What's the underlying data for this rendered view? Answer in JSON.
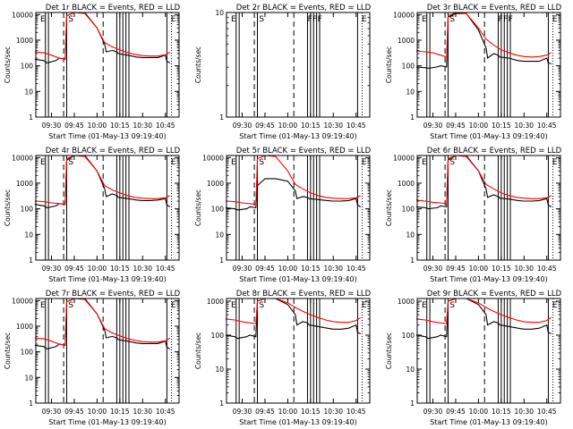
{
  "chart_data": [
    {
      "type": "line",
      "title": "Det 1r BLACK = Events, RED = LLD",
      "xlabel": "Start Time (01-May-13 09:19:40)",
      "ylabel": "Counts/sec",
      "y_scale": "log",
      "ylim": [
        1,
        12000
      ],
      "x_ticks": [
        "09:30",
        "09:45",
        "10:00",
        "10:15",
        "10:30",
        "10:45"
      ],
      "y_ticks": [
        "1",
        "10",
        "100",
        "1000",
        "10000"
      ],
      "flags": [
        "E",
        "S",
        "E"
      ],
      "series": [
        {
          "color": "#000000",
          "x": [
            "09:19",
            "09:25",
            "09:27",
            "09:33",
            "09:35",
            "09:39",
            "09:40",
            "09:45",
            "09:52",
            "10:00",
            "10:05",
            "10:06",
            "10:10",
            "10:13",
            "10:14",
            "10:20",
            "10:26",
            "10:30",
            "10:35",
            "10:40",
            "10:45",
            "10:46",
            "10:48"
          ],
          "values": [
            180,
            160,
            130,
            160,
            200,
            180,
            9000,
            12000,
            12000,
            3000,
            700,
            350,
            400,
            350,
            300,
            260,
            220,
            210,
            210,
            210,
            260,
            150,
            130
          ]
        },
        {
          "color": "#ff0000",
          "x": [
            "09:19",
            "09:25",
            "09:30",
            "09:35",
            "09:39",
            "09:40",
            "09:45",
            "09:52",
            "10:00",
            "10:05",
            "10:10",
            "10:15",
            "10:20",
            "10:25",
            "10:30",
            "10:35",
            "10:40",
            "10:45",
            "10:48"
          ],
          "values": [
            350,
            320,
            260,
            200,
            180,
            9000,
            12000,
            11000,
            3000,
            800,
            550,
            420,
            330,
            280,
            250,
            240,
            240,
            270,
            340
          ]
        }
      ]
    },
    {
      "type": "line",
      "title": "Det 2r BLACK = Events, RED = LLD",
      "xlabel": "Start Time (01-May-13 09:19:40)",
      "ylabel": "Counts/sec",
      "y_scale": "log",
      "ylim": [
        1,
        10
      ],
      "x_ticks": [
        "09:30",
        "09:45",
        "10:00",
        "10:15",
        "10:30",
        "10:45"
      ],
      "y_ticks": [
        "1",
        "10"
      ],
      "flags": [
        "E",
        "S",
        "F",
        "F",
        "F",
        "E"
      ],
      "series": []
    },
    {
      "type": "line",
      "title": "Det 3r BLACK = Events, RED = LLD",
      "xlabel": "Start Time (01-May-13 09:19:40)",
      "ylabel": "Counts/sec",
      "y_scale": "log",
      "ylim": [
        1,
        12000
      ],
      "x_ticks": [
        "09:30",
        "09:45",
        "10:00",
        "10:15",
        "10:30",
        "10:45"
      ],
      "y_ticks": [
        "1",
        "10",
        "100",
        "1000",
        "10000"
      ],
      "flags": [
        "E",
        "S",
        "F",
        "F",
        "F",
        "E"
      ],
      "series": [
        {
          "color": "#000000",
          "x": [
            "09:19",
            "09:25",
            "09:27",
            "09:33",
            "09:35",
            "09:39",
            "09:40",
            "09:45",
            "09:52",
            "10:00",
            "10:05",
            "10:06",
            "10:10",
            "10:13",
            "10:14",
            "10:20",
            "10:26",
            "10:30",
            "10:35",
            "10:40",
            "10:45",
            "10:46",
            "10:48"
          ],
          "values": [
            90,
            85,
            80,
            90,
            100,
            90,
            8000,
            11000,
            11000,
            2500,
            500,
            200,
            300,
            260,
            220,
            200,
            160,
            150,
            150,
            150,
            200,
            130,
            120
          ]
        },
        {
          "color": "#ff0000",
          "x": [
            "09:19",
            "09:25",
            "09:30",
            "09:35",
            "09:39",
            "09:40",
            "09:45",
            "09:52",
            "10:00",
            "10:05",
            "10:10",
            "10:15",
            "10:20",
            "10:25",
            "10:30",
            "10:35",
            "10:40",
            "10:45",
            "10:48"
          ],
          "values": [
            380,
            350,
            320,
            260,
            220,
            9000,
            12000,
            11000,
            3000,
            1100,
            650,
            420,
            330,
            260,
            230,
            220,
            230,
            260,
            330
          ]
        }
      ]
    },
    {
      "type": "line",
      "title": "Det 4r BLACK = Events, RED = LLD",
      "xlabel": "Start Time (01-May-13 09:19:40)",
      "ylabel": "Counts/sec",
      "y_scale": "log",
      "ylim": [
        1,
        12000
      ],
      "x_ticks": [
        "09:30",
        "09:45",
        "10:00",
        "10:15",
        "10:30",
        "10:45"
      ],
      "y_ticks": [
        "1",
        "10",
        "100",
        "1000",
        "10000"
      ],
      "flags": [
        "E",
        "S",
        "E"
      ],
      "series": [
        {
          "color": "#000000",
          "x": [
            "09:19",
            "09:25",
            "09:27",
            "09:33",
            "09:35",
            "09:39",
            "09:40",
            "09:45",
            "09:52",
            "10:00",
            "10:05",
            "10:06",
            "10:10",
            "10:13",
            "10:14",
            "10:20",
            "10:26",
            "10:30",
            "10:35",
            "10:40",
            "10:45",
            "10:46",
            "10:48"
          ],
          "values": [
            150,
            130,
            110,
            130,
            160,
            150,
            8000,
            12000,
            12000,
            3000,
            600,
            300,
            380,
            330,
            280,
            250,
            220,
            210,
            210,
            220,
            250,
            140,
            120
          ]
        },
        {
          "color": "#ff0000",
          "x": [
            "09:19",
            "09:25",
            "09:30",
            "09:35",
            "09:39",
            "09:40",
            "09:45",
            "09:52",
            "10:00",
            "10:05",
            "10:10",
            "10:15",
            "10:20",
            "10:25",
            "10:30",
            "10:35",
            "10:40",
            "10:45",
            "10:48"
          ],
          "values": [
            200,
            190,
            170,
            160,
            150,
            9000,
            12000,
            11000,
            3000,
            800,
            550,
            420,
            330,
            280,
            260,
            250,
            250,
            270,
            330
          ]
        }
      ]
    },
    {
      "type": "line",
      "title": "Det 5r BLACK = Events, RED = LLD",
      "xlabel": "Start Time (01-May-13 09:19:40)",
      "ylabel": "Counts/sec",
      "y_scale": "log",
      "ylim": [
        1,
        12000
      ],
      "x_ticks": [
        "09:30",
        "09:45",
        "10:00",
        "10:15",
        "10:30",
        "10:45"
      ],
      "y_ticks": [
        "1",
        "10",
        "100",
        "1000",
        "10000"
      ],
      "flags": [
        "E",
        "S",
        "E"
      ],
      "series": [
        {
          "color": "#000000",
          "x": [
            "09:19",
            "09:25",
            "09:27",
            "09:33",
            "09:35",
            "09:39",
            "09:40",
            "09:45",
            "09:52",
            "10:00",
            "10:05",
            "10:06",
            "10:10",
            "10:13",
            "10:14",
            "10:20",
            "10:26",
            "10:30",
            "10:35",
            "10:40",
            "10:45",
            "10:46",
            "10:48"
          ],
          "values": [
            110,
            100,
            90,
            100,
            120,
            110,
            800,
            1500,
            1500,
            1200,
            500,
            250,
            300,
            280,
            250,
            230,
            210,
            200,
            200,
            210,
            250,
            140,
            120
          ]
        },
        {
          "color": "#ff0000",
          "x": [
            "09:19",
            "09:25",
            "09:30",
            "09:35",
            "09:39",
            "09:40",
            "09:45",
            "09:52",
            "10:00",
            "10:05",
            "10:10",
            "10:15",
            "10:20",
            "10:25",
            "10:30",
            "10:35",
            "10:40",
            "10:45",
            "10:48"
          ],
          "values": [
            200,
            190,
            170,
            160,
            150,
            9000,
            12000,
            11000,
            3000,
            900,
            600,
            420,
            330,
            280,
            260,
            250,
            250,
            270,
            330
          ]
        }
      ]
    },
    {
      "type": "line",
      "title": "Det 6r BLACK = Events, RED = LLD",
      "xlabel": "Start Time (01-May-13 09:19:40)",
      "ylabel": "Counts/sec",
      "y_scale": "log",
      "ylim": [
        1,
        12000
      ],
      "x_ticks": [
        "09:30",
        "09:45",
        "10:00",
        "10:15",
        "10:30",
        "10:45"
      ],
      "y_ticks": [
        "1",
        "10",
        "100",
        "1000",
        "10000"
      ],
      "flags": [
        "E",
        "S",
        "E"
      ],
      "series": [
        {
          "color": "#000000",
          "x": [
            "09:19",
            "09:25",
            "09:27",
            "09:33",
            "09:35",
            "09:39",
            "09:40",
            "09:45",
            "09:52",
            "10:00",
            "10:05",
            "10:06",
            "10:10",
            "10:13",
            "10:14",
            "10:20",
            "10:26",
            "10:30",
            "10:35",
            "10:40",
            "10:45",
            "10:46",
            "10:48"
          ],
          "values": [
            120,
            110,
            100,
            110,
            130,
            120,
            8000,
            12000,
            12000,
            3000,
            600,
            280,
            350,
            300,
            260,
            240,
            210,
            200,
            200,
            210,
            250,
            140,
            120
          ]
        },
        {
          "color": "#ff0000",
          "x": [
            "09:19",
            "09:25",
            "09:30",
            "09:35",
            "09:39",
            "09:40",
            "09:45",
            "09:52",
            "10:00",
            "10:05",
            "10:10",
            "10:15",
            "10:20",
            "10:25",
            "10:30",
            "10:35",
            "10:40",
            "10:45",
            "10:48"
          ],
          "values": [
            220,
            200,
            180,
            170,
            160,
            9000,
            12000,
            11000,
            3000,
            900,
            600,
            420,
            330,
            280,
            260,
            250,
            250,
            270,
            330
          ]
        }
      ]
    },
    {
      "type": "line",
      "title": "Det 7r BLACK = Events, RED = LLD",
      "xlabel": "Start Time (01-May-13 09:19:40)",
      "ylabel": "Counts/sec",
      "y_scale": "log",
      "ylim": [
        1,
        12000
      ],
      "x_ticks": [
        "09:30",
        "09:45",
        "10:00",
        "10:15",
        "10:30",
        "10:45"
      ],
      "y_ticks": [
        "1",
        "10",
        "100",
        "1000",
        "10000"
      ],
      "flags": [
        "E",
        "S",
        "E"
      ],
      "series": [
        {
          "color": "#000000",
          "x": [
            "09:19",
            "09:25",
            "09:27",
            "09:33",
            "09:35",
            "09:39",
            "09:40",
            "09:45",
            "09:52",
            "10:00",
            "10:05",
            "10:06",
            "10:10",
            "10:13",
            "10:14",
            "10:20",
            "10:26",
            "10:30",
            "10:35",
            "10:40",
            "10:45",
            "10:46",
            "10:48"
          ],
          "values": [
            180,
            160,
            130,
            160,
            200,
            180,
            9000,
            12000,
            12000,
            3000,
            700,
            350,
            400,
            350,
            300,
            260,
            220,
            210,
            210,
            210,
            260,
            150,
            130
          ]
        },
        {
          "color": "#ff0000",
          "x": [
            "09:19",
            "09:25",
            "09:30",
            "09:35",
            "09:39",
            "09:40",
            "09:45",
            "09:52",
            "10:00",
            "10:05",
            "10:10",
            "10:15",
            "10:20",
            "10:25",
            "10:30",
            "10:35",
            "10:40",
            "10:45",
            "10:48"
          ],
          "values": [
            350,
            320,
            260,
            200,
            180,
            9000,
            12000,
            11000,
            3000,
            800,
            550,
            420,
            330,
            280,
            250,
            240,
            240,
            270,
            340
          ]
        }
      ]
    },
    {
      "type": "line",
      "title": "Det 8r BLACK = Events, RED = LLD",
      "xlabel": "Start Time (01-May-13 09:19:40)",
      "ylabel": "Counts/sec",
      "y_scale": "log",
      "ylim": [
        1,
        1200
      ],
      "x_ticks": [
        "09:30",
        "09:45",
        "10:00",
        "10:15",
        "10:30",
        "10:45"
      ],
      "y_ticks": [
        "1",
        "10",
        "100",
        "1000"
      ],
      "flags": [
        "E",
        "S",
        "E"
      ],
      "series": [
        {
          "color": "#000000",
          "x": [
            "09:19",
            "09:25",
            "09:27",
            "09:33",
            "09:35",
            "09:39",
            "09:40",
            "09:45",
            "09:52",
            "10:00",
            "10:05",
            "10:06",
            "10:10",
            "10:13",
            "10:14",
            "10:20",
            "10:26",
            "10:30",
            "10:35",
            "10:40",
            "10:45",
            "10:46",
            "10:48"
          ],
          "values": [
            100,
            90,
            80,
            90,
            100,
            90,
            1000,
            1200,
            1200,
            800,
            400,
            200,
            250,
            230,
            200,
            180,
            160,
            150,
            150,
            160,
            200,
            120,
            110
          ]
        },
        {
          "color": "#ff0000",
          "x": [
            "09:19",
            "09:25",
            "09:30",
            "09:35",
            "09:39",
            "09:40",
            "09:45",
            "09:52",
            "10:00",
            "10:05",
            "10:10",
            "10:15",
            "10:20",
            "10:25",
            "10:30",
            "10:35",
            "10:40",
            "10:45",
            "10:48"
          ],
          "values": [
            300,
            280,
            250,
            230,
            220,
            1000,
            1200,
            1200,
            900,
            650,
            500,
            400,
            330,
            280,
            250,
            240,
            240,
            270,
            330
          ]
        }
      ]
    },
    {
      "type": "line",
      "title": "Det 9r BLACK = Events, RED = LLD",
      "xlabel": "Start Time (01-May-13 09:19:40)",
      "ylabel": "Counts/sec",
      "y_scale": "log",
      "ylim": [
        1,
        1200
      ],
      "x_ticks": [
        "09:30",
        "09:45",
        "10:00",
        "10:15",
        "10:30",
        "10:45"
      ],
      "y_ticks": [
        "1",
        "10",
        "100",
        "1000"
      ],
      "flags": [
        "E",
        "S",
        "E"
      ],
      "series": [
        {
          "color": "#000000",
          "x": [
            "09:19",
            "09:25",
            "09:27",
            "09:33",
            "09:35",
            "09:39",
            "09:40",
            "09:45",
            "09:52",
            "10:00",
            "10:05",
            "10:06",
            "10:10",
            "10:13",
            "10:14",
            "10:20",
            "10:26",
            "10:30",
            "10:35",
            "10:40",
            "10:45",
            "10:46",
            "10:48"
          ],
          "values": [
            100,
            90,
            80,
            90,
            100,
            90,
            1000,
            1200,
            1200,
            800,
            400,
            200,
            250,
            230,
            200,
            180,
            160,
            150,
            150,
            160,
            200,
            120,
            110
          ]
        },
        {
          "color": "#ff0000",
          "x": [
            "09:19",
            "09:25",
            "09:30",
            "09:35",
            "09:39",
            "09:40",
            "09:45",
            "09:52",
            "10:00",
            "10:05",
            "10:10",
            "10:15",
            "10:20",
            "10:25",
            "10:30",
            "10:35",
            "10:40",
            "10:45",
            "10:48"
          ],
          "values": [
            300,
            280,
            250,
            230,
            220,
            1000,
            1200,
            1200,
            900,
            650,
            500,
            400,
            330,
            280,
            250,
            240,
            240,
            270,
            330
          ]
        }
      ]
    }
  ]
}
